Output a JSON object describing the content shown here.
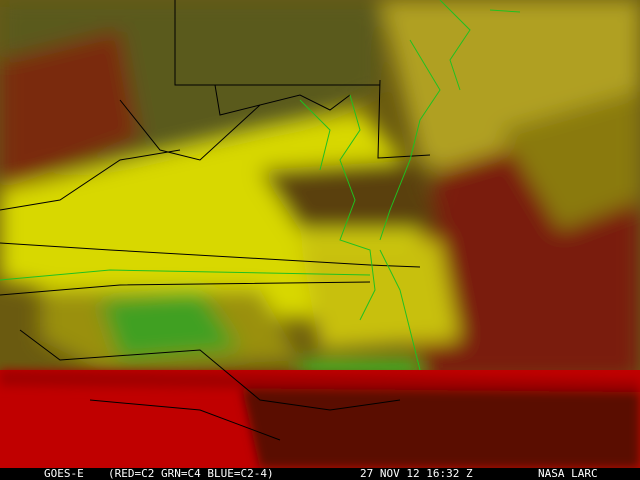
{
  "image": {
    "description_type": "satellite-false-color",
    "colors": {
      "red": "#c00000",
      "yellow": "#d8d800",
      "green": "#40b020",
      "olive": "#6a6a10",
      "dark_red": "#5a0a00",
      "state_borders": "#000000",
      "county_coast_lines": "#20c020"
    }
  },
  "caption": {
    "satellite": "GOES-E",
    "channels": "(RED=C2 GRN=C4 BLUE=C2-4)",
    "datetime": "27 NOV 12 16:32 Z",
    "source": "NASA LARC"
  }
}
